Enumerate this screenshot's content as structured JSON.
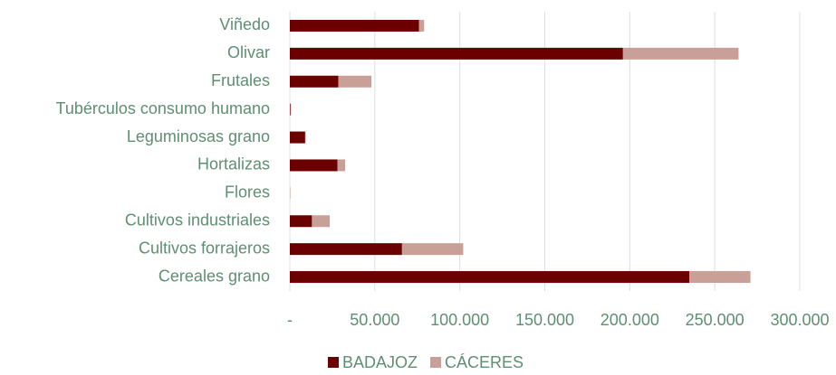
{
  "chart_data": {
    "type": "stacked_barh",
    "categories": [
      "Viñedo",
      "Olivar",
      "Frutales",
      "Tubérculos consumo humano",
      "Leguminosas grano",
      "Hortalizas",
      "Flores",
      "Cultivos industriales",
      "Cultivos forrajeros",
      "Cereales grano"
    ],
    "series": [
      {
        "name": "BADAJOZ",
        "color": "#6b0000",
        "values": [
          76000,
          196000,
          28500,
          400,
          9000,
          28000,
          100,
          13000,
          66000,
          235000
        ]
      },
      {
        "name": "CÁCERES",
        "color": "#c9a097",
        "values": [
          3000,
          68000,
          19500,
          300,
          300,
          4500,
          100,
          10500,
          36000,
          36000
        ]
      }
    ],
    "xlim": [
      0,
      300000
    ],
    "xticks": [
      {
        "value": 0,
        "label": "-"
      },
      {
        "value": 50000,
        "label": "50.000"
      },
      {
        "value": 100000,
        "label": "100.000"
      },
      {
        "value": 150000,
        "label": "150.000"
      },
      {
        "value": 200000,
        "label": "200.000"
      },
      {
        "value": 250000,
        "label": "250.000"
      },
      {
        "value": 300000,
        "label": "300.000"
      }
    ],
    "grid": true,
    "legend": "bottom"
  }
}
